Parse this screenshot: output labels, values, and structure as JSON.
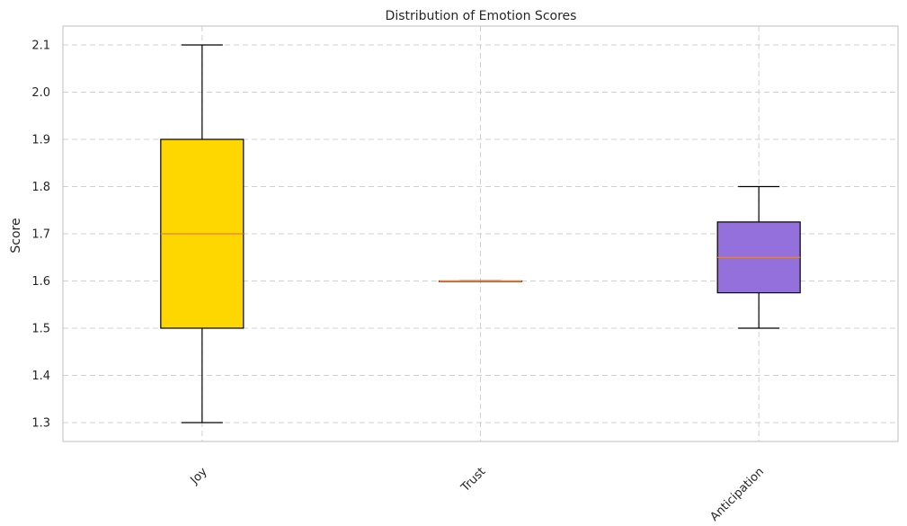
{
  "chart_data": {
    "type": "box",
    "title": "Distribution of Emotion Scores",
    "xlabel": "",
    "ylabel": "Score",
    "ylim": [
      1.26,
      2.14
    ],
    "yticks": [
      1.3,
      1.4,
      1.5,
      1.6,
      1.7,
      1.8,
      1.9,
      2.0,
      2.1
    ],
    "ytick_labels": [
      "1.3",
      "1.4",
      "1.5",
      "1.6",
      "1.7",
      "1.8",
      "1.9",
      "2.0",
      "2.1"
    ],
    "grid": true,
    "categories": [
      "Joy",
      "Trust",
      "Anticipation"
    ],
    "boxes": [
      {
        "category": "Joy",
        "min": 1.3,
        "q1": 1.5,
        "median": 1.7,
        "q3": 1.9,
        "max": 2.1,
        "color": "#FFD700"
      },
      {
        "category": "Trust",
        "min": 1.6,
        "q1": 1.6,
        "median": 1.6,
        "q3": 1.6,
        "max": 1.6,
        "color": "#8B4513"
      },
      {
        "category": "Anticipation",
        "min": 1.5,
        "q1": 1.575,
        "median": 1.65,
        "q3": 1.725,
        "max": 1.8,
        "color": "#9370DB"
      }
    ],
    "median_color": "#E08040"
  }
}
